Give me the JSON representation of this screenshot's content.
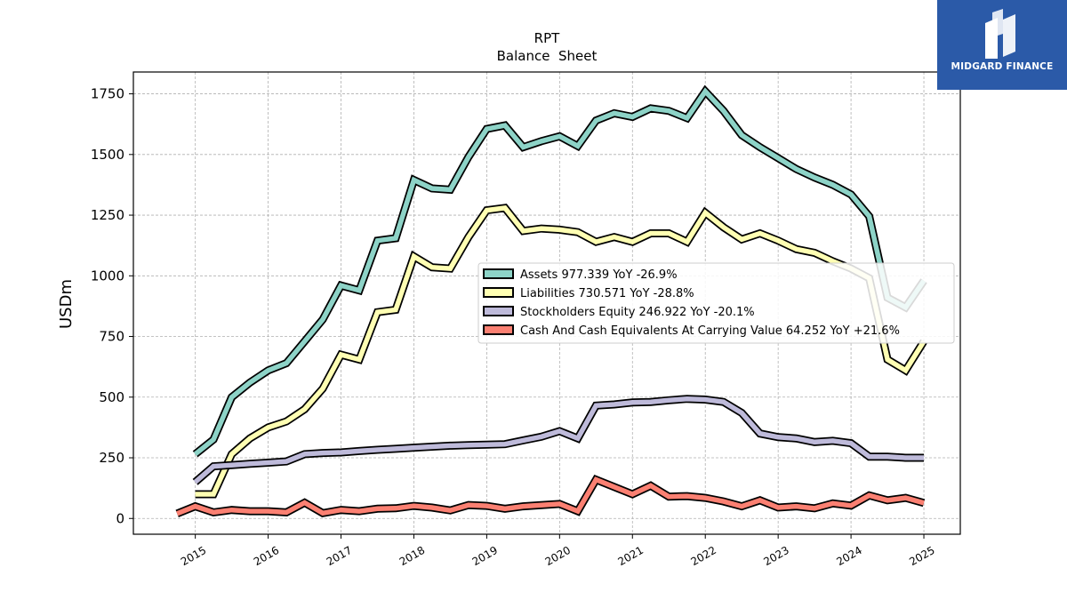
{
  "chart_data": {
    "type": "line",
    "title": "RPT",
    "subtitle": "Balance  Sheet",
    "ylabel": "USDm",
    "xlabel": "",
    "ylim": [
      -65,
      1840
    ],
    "xlim": [
      2014.15,
      2025.5
    ],
    "yticks": [
      0,
      250,
      500,
      750,
      1000,
      1250,
      1500,
      1750
    ],
    "xticks": [
      "2015",
      "2016",
      "2017",
      "2018",
      "2019",
      "2020",
      "2021",
      "2022",
      "2023",
      "2024",
      "2025"
    ],
    "grid": true,
    "legend_position": "center-right",
    "series": [
      {
        "name": "Assets",
        "legend_label": "Assets  977.339 YoY -26.9%",
        "color": "#8dd3c7",
        "x": [
          2015.0,
          2015.25,
          2015.5,
          2015.75,
          2016.0,
          2016.25,
          2016.5,
          2016.75,
          2017.0,
          2017.25,
          2017.5,
          2017.75,
          2018.0,
          2018.25,
          2018.5,
          2018.75,
          2019.0,
          2019.25,
          2019.5,
          2019.75,
          2020.0,
          2020.25,
          2020.5,
          2020.75,
          2021.0,
          2021.25,
          2021.5,
          2021.75,
          2022.0,
          2022.25,
          2022.5,
          2022.75,
          2023.0,
          2023.25,
          2023.5,
          2023.75,
          2024.0,
          2024.25,
          2024.5,
          2024.75,
          2025.0
        ],
        "values": [
          265,
          325,
          500,
          560,
          610,
          640,
          730,
          820,
          960,
          940,
          1145,
          1155,
          1395,
          1360,
          1355,
          1490,
          1605,
          1620,
          1530,
          1555,
          1575,
          1535,
          1640,
          1670,
          1655,
          1690,
          1680,
          1650,
          1760,
          1680,
          1580,
          1530,
          1485,
          1440,
          1405,
          1375,
          1335,
          1245,
          910,
          870,
          980
        ]
      },
      {
        "name": "Liabilities",
        "legend_label": "Liabilities  730.571 YoY -28.8%",
        "color": "#ffffb3",
        "x": [
          2015.0,
          2015.25,
          2015.5,
          2015.75,
          2016.0,
          2016.25,
          2016.5,
          2016.75,
          2017.0,
          2017.25,
          2017.5,
          2017.75,
          2018.0,
          2018.25,
          2018.5,
          2018.75,
          2019.0,
          2019.25,
          2019.5,
          2019.75,
          2020.0,
          2020.25,
          2020.5,
          2020.75,
          2021.0,
          2021.25,
          2021.5,
          2021.75,
          2022.0,
          2022.25,
          2022.5,
          2022.75,
          2023.0,
          2023.25,
          2023.5,
          2023.75,
          2024.0,
          2024.25,
          2024.5,
          2024.75,
          2025.0
        ],
        "values": [
          100,
          100,
          265,
          330,
          375,
          400,
          450,
          535,
          675,
          655,
          850,
          860,
          1080,
          1035,
          1030,
          1160,
          1270,
          1280,
          1185,
          1195,
          1190,
          1180,
          1140,
          1160,
          1140,
          1175,
          1175,
          1140,
          1260,
          1200,
          1150,
          1175,
          1145,
          1110,
          1095,
          1060,
          1030,
          990,
          655,
          610,
          730
        ]
      },
      {
        "name": "Stockholders Equity",
        "legend_label": "Stockholders Equity  246.922 YoY -20.1%",
        "color": "#bebada",
        "x": [
          2015.0,
          2015.25,
          2015.5,
          2015.75,
          2016.0,
          2016.25,
          2016.5,
          2016.75,
          2017.0,
          2017.25,
          2017.5,
          2017.75,
          2018.0,
          2018.25,
          2018.5,
          2018.75,
          2019.0,
          2019.25,
          2019.5,
          2019.75,
          2020.0,
          2020.25,
          2020.5,
          2020.75,
          2021.0,
          2021.25,
          2021.5,
          2021.75,
          2022.0,
          2022.25,
          2022.5,
          2022.75,
          2023.0,
          2023.25,
          2023.5,
          2023.75,
          2024.0,
          2024.25,
          2024.5,
          2024.75,
          2025.0
        ],
        "values": [
          150,
          215,
          220,
          225,
          230,
          235,
          265,
          270,
          272,
          278,
          283,
          287,
          292,
          296,
          300,
          302,
          304,
          306,
          322,
          337,
          360,
          330,
          465,
          470,
          478,
          480,
          487,
          493,
          490,
          480,
          435,
          350,
          335,
          330,
          315,
          320,
          310,
          255,
          255,
          250,
          250
        ]
      },
      {
        "name": "Cash And Cash Equivalents At Carrying Value",
        "legend_label": "Cash And Cash Equivalents At Carrying Value  64.252 YoY +21.6%",
        "color": "#fb8072",
        "x": [
          2014.75,
          2015.0,
          2015.25,
          2015.5,
          2015.75,
          2016.0,
          2016.25,
          2016.5,
          2016.75,
          2017.0,
          2017.25,
          2017.5,
          2017.75,
          2018.0,
          2018.25,
          2018.5,
          2018.75,
          2019.0,
          2019.25,
          2019.5,
          2019.75,
          2020.0,
          2020.25,
          2020.5,
          2020.75,
          2021.0,
          2021.25,
          2021.5,
          2021.75,
          2022.0,
          2022.25,
          2022.5,
          2022.75,
          2023.0,
          2023.25,
          2023.5,
          2023.75,
          2024.0,
          2024.25,
          2024.5,
          2024.75,
          2025.0
        ],
        "values": [
          20,
          50,
          25,
          35,
          30,
          30,
          25,
          65,
          22,
          35,
          30,
          40,
          42,
          52,
          45,
          33,
          55,
          52,
          40,
          50,
          55,
          60,
          30,
          160,
          130,
          100,
          135,
          90,
          92,
          85,
          70,
          50,
          75,
          45,
          50,
          42,
          62,
          53,
          95,
          75,
          85,
          64
        ]
      }
    ]
  },
  "logo": {
    "text": "MIDGARD FINANCE",
    "color": "#2b5aa8"
  }
}
